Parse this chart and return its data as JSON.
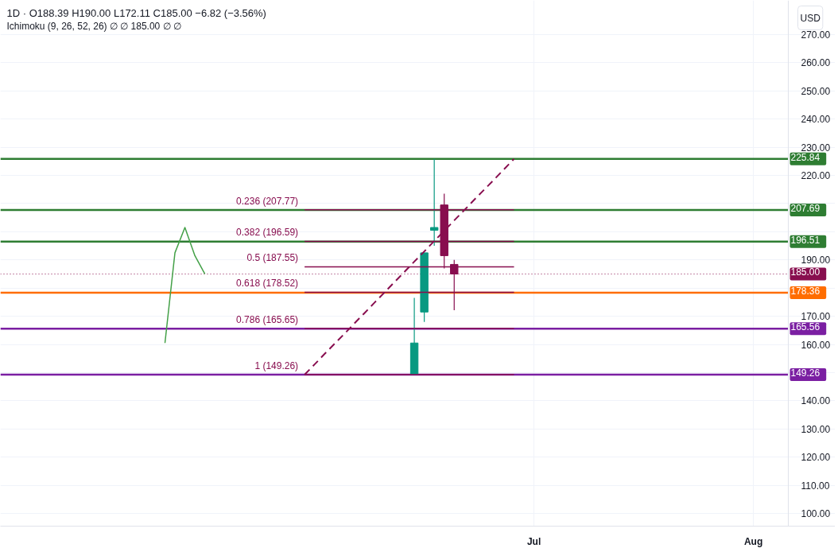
{
  "chart_data": {
    "type": "candlestick",
    "title": "1D · O188.39 H190.00 L172.11 C185.00 −6.82 (−3.56%)",
    "subtitle": "Ichimoku (9, 26, 52, 26) ∅ ∅ 185.00 ∅ ∅",
    "ylabel": "USD",
    "categories": [
      null,
      null,
      null,
      null,
      null,
      null,
      null,
      null,
      null,
      null,
      null,
      null,
      null,
      null,
      null,
      null,
      null,
      null,
      null,
      null,
      null,
      null,
      null,
      null,
      null,
      null,
      null,
      null,
      null,
      null,
      null,
      null,
      null,
      null,
      null,
      null,
      null,
      null,
      null,
      null,
      null,
      null,
      null,
      null,
      null,
      null,
      null,
      null,
      null,
      null,
      null,
      null,
      null,
      "Jul",
      null,
      null,
      null,
      null,
      null,
      null,
      null,
      null,
      null,
      null,
      null,
      null,
      null,
      null,
      null,
      null,
      null,
      null,
      null,
      null,
      null,
      "Aug",
      null,
      null,
      null
    ],
    "ohlc": [
      null,
      null,
      null,
      null,
      null,
      null,
      null,
      null,
      null,
      null,
      null,
      null,
      null,
      null,
      null,
      null,
      null,
      null,
      null,
      null,
      null,
      null,
      null,
      null,
      null,
      null,
      null,
      null,
      null,
      null,
      null,
      null,
      null,
      null,
      null,
      null,
      null,
      null,
      null,
      null,
      null,
      [
        149.5,
        176.5,
        149.26,
        160.5
      ],
      [
        171.5,
        192.5,
        168.0,
        192.5
      ],
      [
        200.5,
        225.84,
        195.0,
        201.5
      ],
      [
        209.5,
        213.5,
        187.0,
        191.5
      ],
      [
        188.39,
        190.0,
        172.11,
        185.0
      ],
      null,
      null,
      null,
      null,
      null,
      null,
      null,
      null,
      null,
      null,
      null,
      null,
      null,
      null,
      null,
      null,
      null,
      null,
      null,
      null,
      null,
      null,
      null,
      null,
      null,
      null,
      null,
      null,
      null,
      null,
      null,
      null,
      null
    ],
    "colors": [
      null,
      null,
      null,
      null,
      null,
      null,
      null,
      null,
      null,
      null,
      null,
      null,
      null,
      null,
      null,
      null,
      null,
      null,
      null,
      null,
      null,
      null,
      null,
      null,
      null,
      null,
      null,
      null,
      null,
      null,
      null,
      null,
      null,
      null,
      null,
      null,
      null,
      null,
      null,
      null,
      null,
      "#089981",
      "#089981",
      "#089981",
      "#880e4f",
      "#880e4f",
      null,
      null,
      null,
      null,
      null,
      null,
      null,
      null,
      null,
      null,
      null,
      null,
      null,
      null,
      null,
      null,
      null,
      null,
      null,
      null,
      null,
      null,
      null,
      null,
      null,
      null,
      null,
      null,
      null,
      null,
      null,
      null,
      null
    ],
    "series": [
      {
        "type": "line",
        "color": "#43a047",
        "values": [
          null,
          null,
          null,
          null,
          null,
          null,
          null,
          null,
          null,
          null,
          null,
          null,
          null,
          null,
          null,
          null,
          160.5,
          192.5,
          201.5,
          191.5,
          185.0,
          null,
          null,
          null,
          null,
          null,
          null,
          null,
          null,
          null,
          null,
          null,
          null,
          null,
          null,
          null,
          null,
          null,
          null,
          null,
          null,
          null,
          null,
          null,
          null,
          null,
          null,
          null,
          null,
          null,
          null,
          null,
          null,
          null,
          null,
          null,
          null,
          null,
          null,
          null,
          null,
          null,
          null,
          null,
          null,
          null,
          null,
          null,
          null,
          null,
          null,
          null,
          null,
          null,
          null,
          null,
          null,
          null,
          null
        ]
      },
      {
        "type": "line",
        "color": "#880e4f",
        "line_style": "dashed",
        "values": [
          null,
          null,
          null,
          null,
          null,
          null,
          null,
          null,
          null,
          null,
          null,
          null,
          null,
          null,
          null,
          null,
          null,
          null,
          null,
          null,
          null,
          null,
          null,
          null,
          null,
          null,
          null,
          null,
          null,
          null,
          149.26,
          152.9,
          156.6,
          160.2,
          163.8,
          167.5,
          171.1,
          174.8,
          178.4,
          182.1,
          185.7,
          189.4,
          193.0,
          196.7,
          200.3,
          204.0,
          207.6,
          211.3,
          214.9,
          218.5,
          222.2,
          225.84,
          null,
          null,
          null,
          null,
          null,
          null,
          null,
          null,
          null,
          null,
          null,
          null,
          null,
          null,
          null,
          null,
          null,
          null,
          null,
          null,
          null,
          null,
          null,
          null,
          null,
          null,
          null
        ]
      },
      {
        "type": "line",
        "name": "0.236 (207.77)",
        "color": "#880e4f",
        "values": [
          null,
          null,
          null,
          null,
          null,
          null,
          null,
          null,
          null,
          null,
          null,
          null,
          null,
          null,
          null,
          null,
          null,
          null,
          null,
          null,
          null,
          null,
          null,
          null,
          null,
          null,
          null,
          null,
          null,
          null,
          207.77,
          207.77,
          207.77,
          207.77,
          207.77,
          207.77,
          207.77,
          207.77,
          207.77,
          207.77,
          207.77,
          207.77,
          207.77,
          207.77,
          207.77,
          207.77,
          207.77,
          207.77,
          207.77,
          207.77,
          207.77,
          207.77,
          null,
          null,
          null,
          null,
          null,
          null,
          null,
          null,
          null,
          null,
          null,
          null,
          null,
          null,
          null,
          null,
          null,
          null,
          null,
          null,
          null,
          null,
          null,
          null,
          null,
          null,
          null
        ]
      },
      {
        "type": "line",
        "name": "0.382 (196.59)",
        "color": "#880e4f",
        "values": [
          null,
          null,
          null,
          null,
          null,
          null,
          null,
          null,
          null,
          null,
          null,
          null,
          null,
          null,
          null,
          null,
          null,
          null,
          null,
          null,
          null,
          null,
          null,
          null,
          null,
          null,
          null,
          null,
          null,
          null,
          196.59,
          196.59,
          196.59,
          196.59,
          196.59,
          196.59,
          196.59,
          196.59,
          196.59,
          196.59,
          196.59,
          196.59,
          196.59,
          196.59,
          196.59,
          196.59,
          196.59,
          196.59,
          196.59,
          196.59,
          196.59,
          196.59,
          null,
          null,
          null,
          null,
          null,
          null,
          null,
          null,
          null,
          null,
          null,
          null,
          null,
          null,
          null,
          null,
          null,
          null,
          null,
          null,
          null,
          null,
          null,
          null,
          null,
          null,
          null
        ]
      },
      {
        "type": "line",
        "name": "0.5 (187.55)",
        "color": "#880e4f",
        "values": [
          null,
          null,
          null,
          null,
          null,
          null,
          null,
          null,
          null,
          null,
          null,
          null,
          null,
          null,
          null,
          null,
          null,
          null,
          null,
          null,
          null,
          null,
          null,
          null,
          null,
          null,
          null,
          null,
          null,
          null,
          187.55,
          187.55,
          187.55,
          187.55,
          187.55,
          187.55,
          187.55,
          187.55,
          187.55,
          187.55,
          187.55,
          187.55,
          187.55,
          187.55,
          187.55,
          187.55,
          187.55,
          187.55,
          187.55,
          187.55,
          187.55,
          187.55,
          null,
          null,
          null,
          null,
          null,
          null,
          null,
          null,
          null,
          null,
          null,
          null,
          null,
          null,
          null,
          null,
          null,
          null,
          null,
          null,
          null,
          null,
          null,
          null,
          null,
          null,
          null
        ]
      },
      {
        "type": "line",
        "name": "0.618 (178.52)",
        "color": "#880e4f",
        "values": [
          null,
          null,
          null,
          null,
          null,
          null,
          null,
          null,
          null,
          null,
          null,
          null,
          null,
          null,
          null,
          null,
          null,
          null,
          null,
          null,
          null,
          null,
          null,
          null,
          null,
          null,
          null,
          null,
          null,
          null,
          178.52,
          178.52,
          178.52,
          178.52,
          178.52,
          178.52,
          178.52,
          178.52,
          178.52,
          178.52,
          178.52,
          178.52,
          178.52,
          178.52,
          178.52,
          178.52,
          178.52,
          178.52,
          178.52,
          178.52,
          178.52,
          178.52,
          null,
          null,
          null,
          null,
          null,
          null,
          null,
          null,
          null,
          null,
          null,
          null,
          null,
          null,
          null,
          null,
          null,
          null,
          null,
          null,
          null,
          null,
          null,
          null,
          null,
          null,
          null
        ]
      },
      {
        "type": "line",
        "name": "0.786 (165.65)",
        "color": "#880e4f",
        "values": [
          null,
          null,
          null,
          null,
          null,
          null,
          null,
          null,
          null,
          null,
          null,
          null,
          null,
          null,
          null,
          null,
          null,
          null,
          null,
          null,
          null,
          null,
          null,
          null,
          null,
          null,
          null,
          null,
          null,
          null,
          165.65,
          165.65,
          165.65,
          165.65,
          165.65,
          165.65,
          165.65,
          165.65,
          165.65,
          165.65,
          165.65,
          165.65,
          165.65,
          165.65,
          165.65,
          165.65,
          165.65,
          165.65,
          165.65,
          165.65,
          165.65,
          165.65,
          null,
          null,
          null,
          null,
          null,
          null,
          null,
          null,
          null,
          null,
          null,
          null,
          null,
          null,
          null,
          null,
          null,
          null,
          null,
          null,
          null,
          null,
          null,
          null,
          null,
          null,
          null
        ]
      },
      {
        "type": "line",
        "name": "1 (149.26)",
        "color": "#880e4f",
        "values": [
          null,
          null,
          null,
          null,
          null,
          null,
          null,
          null,
          null,
          null,
          null,
          null,
          null,
          null,
          null,
          null,
          null,
          null,
          null,
          null,
          null,
          null,
          null,
          null,
          null,
          null,
          null,
          null,
          null,
          null,
          149.26,
          149.26,
          149.26,
          149.26,
          149.26,
          149.26,
          149.26,
          149.26,
          149.26,
          149.26,
          149.26,
          149.26,
          149.26,
          149.26,
          149.26,
          149.26,
          149.26,
          149.26,
          149.26,
          149.26,
          149.26,
          149.26,
          null,
          null,
          null,
          null,
          null,
          null,
          null,
          null,
          null,
          null,
          null,
          null,
          null,
          null,
          null,
          null,
          null,
          null,
          null,
          null,
          null,
          null,
          null,
          null,
          null,
          null,
          null
        ]
      }
    ],
    "ref_lines": [
      {
        "axis": "y",
        "value": 225.84,
        "label": "225.84",
        "color": "#2e7d32"
      },
      {
        "axis": "y",
        "value": 207.69,
        "label": "207.69",
        "color": "#2e7d32"
      },
      {
        "axis": "y",
        "value": 196.51,
        "label": "196.51",
        "color": "#2e7d32"
      },
      {
        "axis": "y",
        "value": 185.0,
        "label": "185.00",
        "color": "#880e4f",
        "line_style": "dotted"
      },
      {
        "axis": "y",
        "value": 178.36,
        "label": "178.36",
        "color": "#ff6d00"
      },
      {
        "axis": "y",
        "value": 165.56,
        "label": "165.56",
        "color": "#7b1fa2"
      },
      {
        "axis": "y",
        "value": 149.26,
        "label": "149.26",
        "color": "#7b1fa2"
      }
    ],
    "ylim": [
      95.5,
      282.1
    ],
    "yticks": [
      {
        "value": 100,
        "label": "100.00"
      },
      {
        "value": 110,
        "label": "110.00"
      },
      {
        "value": 120,
        "label": "120.00"
      },
      {
        "value": 130,
        "label": "130.00"
      },
      {
        "value": 140,
        "label": "140.00"
      },
      {
        "value": 150,
        "label": null
      },
      {
        "value": 160,
        "label": "160.00"
      },
      {
        "value": 170,
        "label": "170.00"
      },
      {
        "value": 180,
        "label": null
      },
      {
        "value": 190,
        "label": "190.00"
      },
      {
        "value": 200,
        "label": null
      },
      {
        "value": 210,
        "label": null
      },
      {
        "value": 220,
        "label": "220.00"
      },
      {
        "value": 230,
        "label": "230.00"
      },
      {
        "value": 240,
        "label": "240.00"
      },
      {
        "value": 250,
        "label": "250.00"
      },
      {
        "value": 260,
        "label": "260.00"
      },
      {
        "value": 270,
        "label": "270.00"
      }
    ],
    "grid": true
  }
}
